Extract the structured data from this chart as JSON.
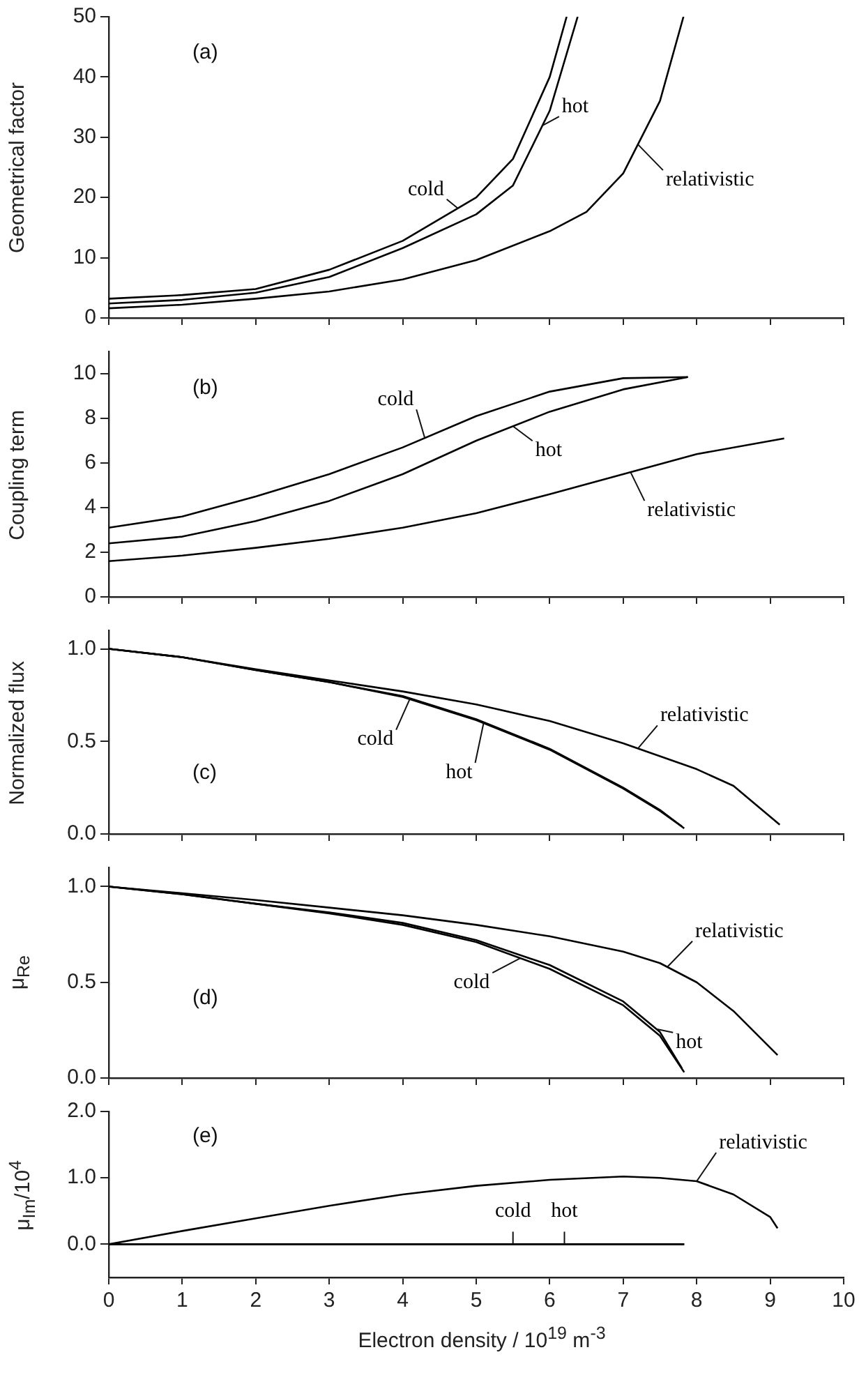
{
  "chart_data": [
    {
      "type": "line",
      "ylabel": "Geometrical factor",
      "annotations": [
        "(a)"
      ],
      "xlim": [
        0,
        10
      ],
      "xticks": [
        0,
        1,
        2,
        3,
        4,
        5,
        6,
        7,
        8,
        9,
        10
      ],
      "ylim": [
        0,
        50
      ],
      "yticks": [
        0,
        10,
        20,
        30,
        40,
        50
      ],
      "tick_labels": "y",
      "series": [
        {
          "name": "cold",
          "color": "#000000",
          "x": [
            0,
            1,
            2,
            3,
            4,
            5,
            5.5,
            6,
            6.23
          ],
          "values": [
            3.2,
            3.8,
            4.8,
            8,
            12.8,
            20,
            26.4,
            40,
            50
          ]
        },
        {
          "name": "hot",
          "color": "#000000",
          "x": [
            0,
            1,
            2,
            3,
            4,
            5,
            5.5,
            6,
            6.38
          ],
          "values": [
            2.4,
            3.0,
            4.2,
            6.8,
            11.6,
            17.2,
            22,
            34.4,
            50
          ]
        },
        {
          "name": "relativistic",
          "color": "#000000",
          "x": [
            0,
            1,
            2,
            3,
            4,
            5,
            6,
            6.5,
            7,
            7.5,
            7.82
          ],
          "values": [
            1.6,
            2.2,
            3.2,
            4.4,
            6.4,
            9.6,
            14.4,
            17.6,
            24,
            36,
            50
          ]
        }
      ]
    },
    {
      "type": "line",
      "ylabel": "Coupling term",
      "annotations": [
        "(b)"
      ],
      "xlim": [
        0,
        10
      ],
      "xticks": [
        0,
        1,
        2,
        3,
        4,
        5,
        6,
        7,
        8,
        9,
        10
      ],
      "ylim": [
        0,
        11
      ],
      "yticks": [
        0,
        2,
        4,
        6,
        8,
        10
      ],
      "tick_labels": "y",
      "series": [
        {
          "name": "cold",
          "color": "#000000",
          "x": [
            0,
            1,
            2,
            3,
            4,
            5,
            6,
            7,
            7.88
          ],
          "values": [
            3.1,
            3.6,
            4.5,
            5.5,
            6.7,
            8.1,
            9.2,
            9.8,
            9.85
          ]
        },
        {
          "name": "hot",
          "color": "#000000",
          "x": [
            0,
            1,
            2,
            3,
            4,
            5,
            6,
            7,
            7.88
          ],
          "values": [
            2.4,
            2.7,
            3.4,
            4.3,
            5.5,
            7.0,
            8.3,
            9.3,
            9.85
          ]
        },
        {
          "name": "relativistic",
          "color": "#000000",
          "x": [
            0,
            1,
            2,
            3,
            4,
            5,
            6,
            7,
            8,
            9.19
          ],
          "values": [
            1.6,
            1.85,
            2.2,
            2.6,
            3.1,
            3.75,
            4.6,
            5.5,
            6.4,
            7.1
          ]
        }
      ]
    },
    {
      "type": "line",
      "ylabel": "Normalized flux",
      "annotations": [
        "(c)"
      ],
      "xlim": [
        0,
        10
      ],
      "xticks": [
        0,
        1,
        2,
        3,
        4,
        5,
        6,
        7,
        8,
        9,
        10
      ],
      "ylim": [
        0,
        1.1
      ],
      "yticks": [
        {
          "value": 0,
          "label": "0.0"
        },
        0.5,
        {
          "value": 1,
          "label": "1.0"
        }
      ],
      "tick_labels": "y",
      "series": [
        {
          "name": "cold",
          "color": "#000000",
          "x": [
            0,
            1,
            2,
            3,
            4,
            5,
            6,
            7,
            7.5,
            7.83
          ],
          "values": [
            1,
            0.955,
            0.885,
            0.82,
            0.745,
            0.62,
            0.46,
            0.25,
            0.13,
            0.03
          ]
        },
        {
          "name": "hot",
          "color": "#000000",
          "x": [
            0,
            1,
            2,
            3,
            4,
            5,
            6,
            7,
            7.5,
            7.8
          ],
          "values": [
            1,
            0.955,
            0.885,
            0.82,
            0.74,
            0.615,
            0.455,
            0.245,
            0.125,
            0.04
          ]
        },
        {
          "name": "relativistic",
          "color": "#000000",
          "x": [
            0,
            1,
            2,
            3,
            4,
            5,
            6,
            7,
            8,
            8.5,
            9.13
          ],
          "values": [
            1,
            0.955,
            0.89,
            0.83,
            0.77,
            0.7,
            0.61,
            0.49,
            0.35,
            0.26,
            0.05
          ]
        }
      ]
    },
    {
      "type": "line",
      "ylabel": "μ$_{Re}$",
      "annotations": [
        "(d)"
      ],
      "xlim": [
        0,
        10
      ],
      "xticks": [
        0,
        1,
        2,
        3,
        4,
        5,
        6,
        7,
        8,
        9,
        10
      ],
      "ylim": [
        0,
        1.1
      ],
      "yticks": [
        {
          "value": 0,
          "label": "0.0"
        },
        0.5,
        {
          "value": 1,
          "label": "1.0"
        }
      ],
      "tick_labels": "y",
      "series": [
        {
          "name": "cold",
          "color": "#000000",
          "x": [
            0,
            1,
            2,
            3,
            4,
            5,
            6,
            7,
            7.5,
            7.83
          ],
          "values": [
            1,
            0.96,
            0.91,
            0.86,
            0.8,
            0.71,
            0.57,
            0.38,
            0.22,
            0.03
          ]
        },
        {
          "name": "hot",
          "color": "#000000",
          "x": [
            0,
            1,
            2,
            3,
            4,
            5,
            6,
            7,
            7.5,
            7.8
          ],
          "values": [
            1,
            0.96,
            0.91,
            0.865,
            0.81,
            0.72,
            0.59,
            0.4,
            0.24,
            0.05
          ]
        },
        {
          "name": "relativistic",
          "color": "#000000",
          "x": [
            0,
            1,
            2,
            3,
            4,
            5,
            6,
            7,
            7.5,
            8,
            8.5,
            9.1
          ],
          "values": [
            1,
            0.965,
            0.93,
            0.89,
            0.85,
            0.8,
            0.74,
            0.66,
            0.6,
            0.5,
            0.35,
            0.12
          ]
        }
      ]
    },
    {
      "type": "line",
      "ylabel": "μ$_{Im}$/10$^{4}$",
      "xlabel": "Electron density / 10$^{19}$ m$^{-3}$",
      "annotations": [
        "(e)"
      ],
      "xlim": [
        0,
        10
      ],
      "xticks": [
        0,
        1,
        2,
        3,
        4,
        5,
        6,
        7,
        8,
        9,
        10
      ],
      "ylim": [
        -0.5,
        2
      ],
      "yticks": [
        {
          "value": 0,
          "label": "0.0"
        },
        {
          "value": 1,
          "label": "1.0"
        },
        {
          "value": 2,
          "label": "2.0"
        }
      ],
      "series": [
        {
          "name": "cold",
          "color": "#000000",
          "x": [
            0,
            7.83
          ],
          "values": [
            0,
            0
          ]
        },
        {
          "name": "hot",
          "color": "#000000",
          "x": [
            0,
            7.83
          ],
          "values": [
            0,
            0
          ]
        },
        {
          "name": "relativistic",
          "color": "#000000",
          "x": [
            0,
            1,
            2,
            3,
            4,
            5,
            6,
            7,
            7.5,
            8,
            8.5,
            9,
            9.1
          ],
          "values": [
            0,
            0.2,
            0.39,
            0.58,
            0.75,
            0.88,
            0.97,
            1.02,
            1.0,
            0.95,
            0.75,
            0.41,
            0.24
          ]
        }
      ]
    }
  ]
}
